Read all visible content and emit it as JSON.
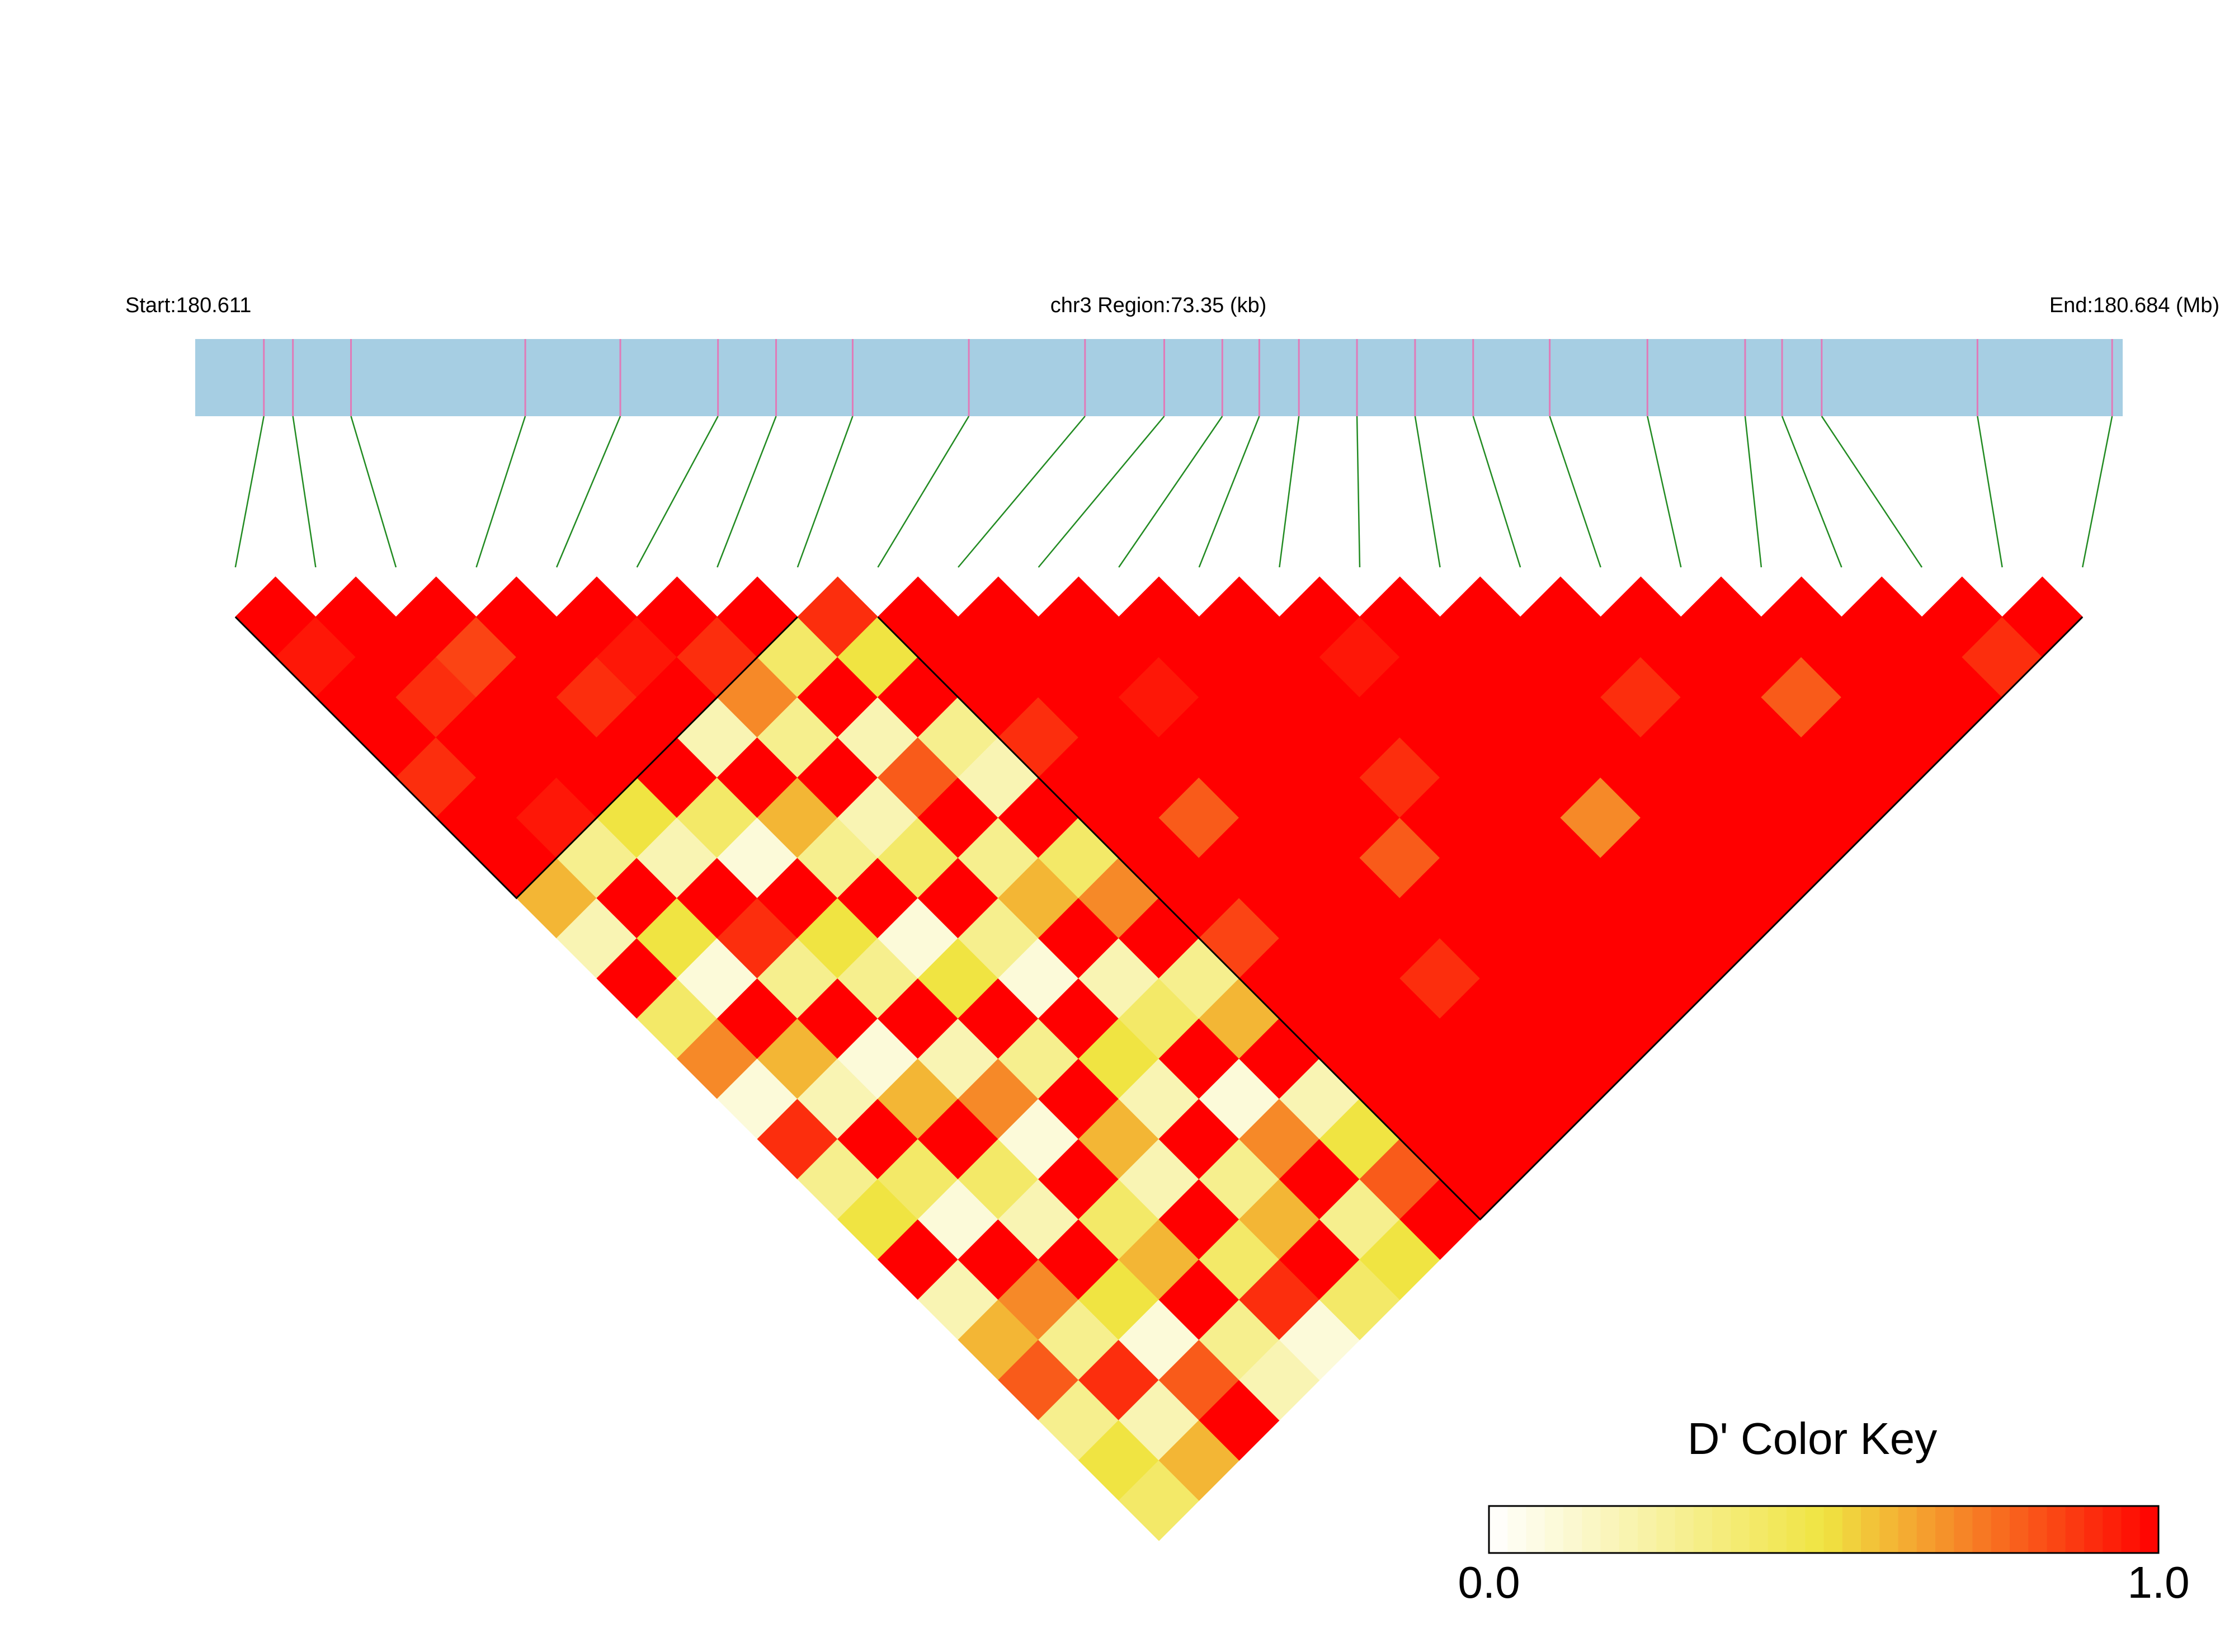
{
  "chart_data": {
    "type": "ld-heatmap",
    "start_label": "Start:180.611",
    "region_label": "chr3 Region:73.35 (kb)",
    "end_label": "End:180.684 (Mb)",
    "xlim": [
      180.611,
      180.684
    ],
    "positions": [
      180.6136,
      180.6147,
      180.6169,
      180.6235,
      180.6271,
      180.6308,
      180.633,
      180.6359,
      180.6403,
      180.6447,
      180.6477,
      180.6499,
      180.6513,
      180.6528,
      180.655,
      180.6572,
      180.6594,
      180.6623,
      180.666,
      180.6697,
      180.6711,
      180.6726,
      180.6785,
      180.6836
    ],
    "dprime": [
      [
        1,
        0.95,
        1,
        1,
        0.9,
        1,
        1,
        0.6,
        0.2,
        1,
        0.4,
        0.7,
        0.1,
        0.9,
        0.3,
        0.5,
        1,
        0.2,
        0.6,
        0.8,
        0.3,
        0.5,
        0.4
      ],
      [
        1,
        1,
        0.9,
        1,
        1,
        0.95,
        0.3,
        1,
        0.5,
        0.1,
        1,
        0.6,
        0.2,
        1,
        0.4,
        0.1,
        1,
        0.7,
        0.3,
        0.9,
        0.2,
        0.6
      ],
      [
        1,
        0.85,
        1,
        1,
        1,
        0.5,
        0.2,
        1,
        0.9,
        0.3,
        1,
        0.1,
        0.6,
        1,
        0.4,
        0.2,
        1,
        0.5,
        0.1,
        0.8,
        1
      ],
      [
        1,
        1,
        0.9,
        1,
        1,
        0.4,
        0.1,
        1,
        0.5,
        0.3,
        1,
        0.2,
        0.7,
        0.1,
        1,
        0.4,
        0.6,
        1,
        0.3,
        0.2
      ],
      [
        1,
        0.95,
        1,
        0.2,
        1,
        0.6,
        0.3,
        1,
        0.1,
        0.5,
        1,
        0.3,
        1,
        0.6,
        0.2,
        1,
        0.4,
        0.9,
        0.1
      ],
      [
        1,
        0.9,
        0.7,
        0.3,
        1,
        0.2,
        0.4,
        1,
        0.3,
        0.1,
        1,
        0.5,
        0.2,
        1,
        0.3,
        0.6,
        1,
        0.4
      ],
      [
        1,
        0.4,
        1,
        0.2,
        0.8,
        1,
        0.3,
        0.6,
        1,
        0.2,
        0.4,
        1,
        0.1,
        0.7,
        1,
        0.3,
        0.5
      ],
      [
        0.9,
        0.5,
        1,
        0.3,
        0.2,
        1,
        0.4,
        0.7,
        1,
        0.3,
        0.6,
        1,
        0.2,
        0.5,
        0.8,
        1
      ],
      [
        1,
        1,
        1,
        0.9,
        1,
        1,
        1,
        1,
        0.85,
        1,
        1,
        1,
        1,
        1,
        1
      ],
      [
        1,
        1,
        1,
        1,
        1,
        0.8,
        1,
        1,
        1,
        1,
        1,
        1,
        1,
        1
      ],
      [
        1,
        1,
        0.95,
        1,
        1,
        1,
        1,
        1,
        1,
        0.9,
        1,
        1,
        1
      ],
      [
        1,
        1,
        1,
        1,
        1,
        1,
        0.8,
        1,
        1,
        1,
        1,
        1
      ],
      [
        1,
        1,
        1,
        1,
        0.9,
        1,
        1,
        1,
        1,
        1,
        1
      ],
      [
        1,
        0.95,
        1,
        1,
        1,
        1,
        1,
        1,
        1,
        1
      ],
      [
        1,
        1,
        1,
        1,
        1,
        0.7,
        1,
        1,
        1
      ],
      [
        1,
        1,
        1,
        1,
        1,
        1,
        1,
        1
      ],
      [
        1,
        1,
        0.9,
        1,
        1,
        1,
        1
      ],
      [
        1,
        1,
        1,
        1,
        1,
        1
      ],
      [
        1,
        1,
        0.8,
        1,
        1
      ],
      [
        1,
        1,
        1,
        1
      ],
      [
        1,
        1,
        1
      ],
      [
        1,
        0.9
      ],
      [
        1
      ]
    ],
    "blocks": [
      [
        0,
        7
      ],
      [
        8,
        23
      ]
    ],
    "bar_color": "#a6cee3",
    "snp_tick_color": "#e17ab8",
    "link_color": "#228b22",
    "colors": [
      "#ffffff",
      "#f0e442",
      "#ff0000"
    ],
    "key_title": "D' Color Key",
    "key_lim": [
      0,
      1
    ],
    "key_ticks": [
      {
        "value": 0,
        "label": "0.0"
      },
      {
        "value": 1,
        "label": "1.0"
      }
    ]
  }
}
